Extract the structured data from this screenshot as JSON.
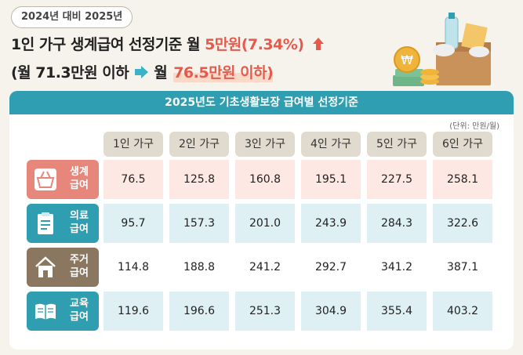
{
  "badge": "2024년 대비 2025년",
  "headline": {
    "prefix": "1인 가구 생계급여 선정기준 월 ",
    "highlight": "5만원(7.34%)",
    "arrow_icon": "up-arrow-icon"
  },
  "subline": {
    "left": "(월 71.3만원 이하",
    "mid": "월",
    "right": "76.5만원 이하)"
  },
  "table": {
    "title": "2025년도 기초생활보장 급여별 선정기준",
    "unit": "(단위: 만원/월)",
    "columns": [
      "1인 가구",
      "2인 가구",
      "3인 가구",
      "4인 가구",
      "5인 가구",
      "6인 가구"
    ],
    "rows": [
      {
        "label_line1": "생계",
        "label_line2": "급여",
        "icon": "shopping-basket-icon",
        "label_color": "#e7867a",
        "cell_color": "#fde8e3",
        "values": [
          "76.5",
          "125.8",
          "160.8",
          "195.1",
          "227.5",
          "258.1"
        ]
      },
      {
        "label_line1": "의료",
        "label_line2": "급여",
        "icon": "clipboard-icon",
        "label_color": "#2f9eb0",
        "cell_color": "#dff0f4",
        "values": [
          "95.7",
          "157.3",
          "201.0",
          "243.9",
          "284.3",
          "322.6"
        ]
      },
      {
        "label_line1": "주거",
        "label_line2": "급여",
        "icon": "house-icon",
        "label_color": "#8b7760",
        "cell_color": "#ffffff",
        "values": [
          "114.8",
          "188.8",
          "241.2",
          "292.7",
          "341.2",
          "387.1"
        ]
      },
      {
        "label_line1": "교육",
        "label_line2": "급여",
        "icon": "book-icon",
        "label_color": "#2f9eb0",
        "cell_color": "#dff0f4",
        "values": [
          "119.6",
          "196.6",
          "251.3",
          "304.9",
          "355.4",
          "403.2"
        ]
      }
    ]
  },
  "colors": {
    "accent_red": "#e65a4c",
    "teal": "#2f9eb0",
    "header_bg": "#e1dbcf"
  },
  "illustration": {
    "icon": "groceries-and-coins-icon",
    "coin_symbol": "₩"
  }
}
